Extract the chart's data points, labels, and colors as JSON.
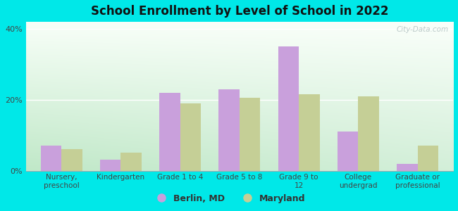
{
  "title": "School Enrollment by Level of School in 2022",
  "categories": [
    "Nursery,\npreschool",
    "Kindergarten",
    "Grade 1 to 4",
    "Grade 5 to 8",
    "Grade 9 to\n12",
    "College\nundergrad",
    "Graduate or\nprofessional"
  ],
  "berlin_values": [
    7.0,
    3.0,
    22.0,
    23.0,
    35.0,
    11.0,
    2.0
  ],
  "maryland_values": [
    6.0,
    5.0,
    19.0,
    20.5,
    21.5,
    21.0,
    7.0
  ],
  "berlin_color": "#c9a0dc",
  "maryland_color": "#c5cf96",
  "background_outer": "#00e8e8",
  "ylim": [
    0,
    42
  ],
  "yticks": [
    0,
    20,
    40
  ],
  "ytick_labels": [
    "0%",
    "20%",
    "40%"
  ],
  "legend_berlin": "Berlin, MD",
  "legend_maryland": "Maryland",
  "bar_width": 0.35,
  "watermark": "City-Data.com"
}
